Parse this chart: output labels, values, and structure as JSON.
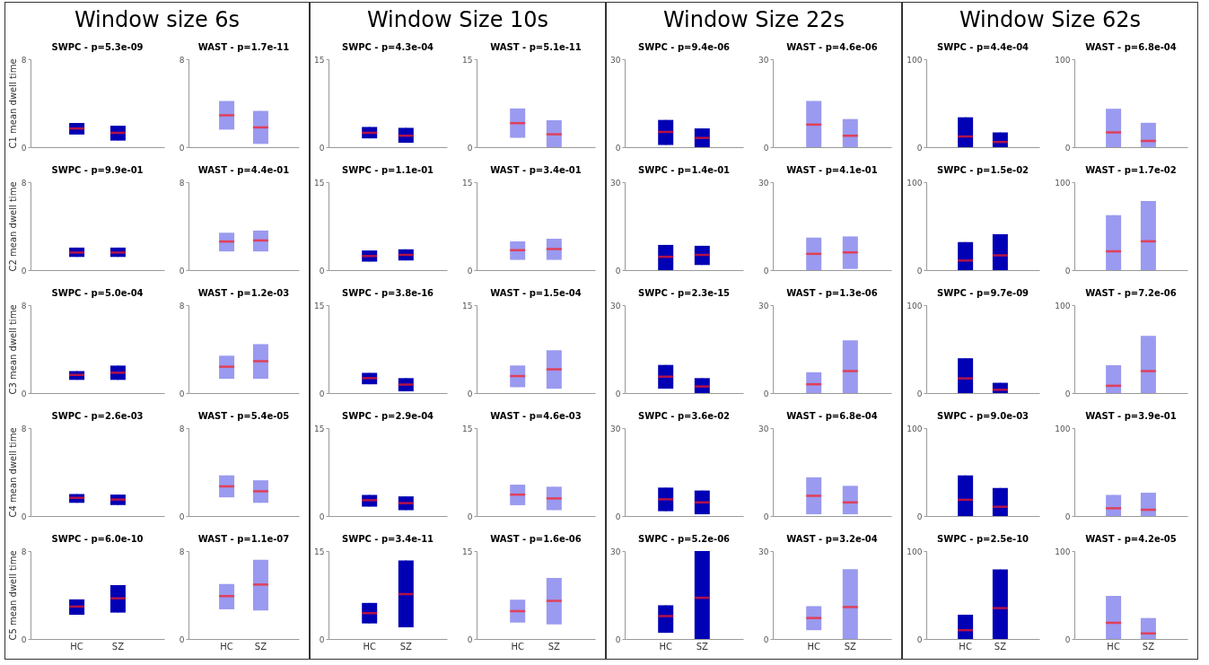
{
  "chart_data": [
    {
      "type": "box",
      "title": "SWPC - p=5.3e-09",
      "ylabel": "C1 mean dwell time",
      "annotations": [
        "Window size 6s"
      ],
      "categories": [
        null,
        null
      ],
      "ylim": [
        0,
        8
      ],
      "yticks": [
        0,
        8
      ],
      "series": [
        {
          "color": "#0000b4",
          "boxes": [
            {
              "low": 1.15,
              "q1": 1.15,
              "median": 1.7,
              "q3": 2.2,
              "high": 2.2
            },
            {
              "low": 0.6,
              "q1": 0.6,
              "median": 1.3,
              "q3": 1.95,
              "high": 1.95
            }
          ]
        }
      ]
    },
    {
      "type": "box",
      "title": "WAST - p=1.7e-11",
      "categories": [
        null,
        null
      ],
      "ylim": [
        0,
        8
      ],
      "yticks": [
        0,
        8
      ],
      "series": [
        {
          "color": "#9a9af0",
          "boxes": [
            {
              "low": 1.6,
              "q1": 1.6,
              "median": 2.9,
              "q3": 4.2,
              "high": 4.2
            },
            {
              "low": 0.3,
              "q1": 0.3,
              "median": 1.8,
              "q3": 3.3,
              "high": 3.3
            }
          ]
        }
      ]
    },
    {
      "type": "box",
      "title": "SWPC - p=4.3e-04",
      "annotations": [
        "Window Size 10s"
      ],
      "categories": [
        null,
        null
      ],
      "ylim": [
        0,
        15
      ],
      "yticks": [
        0,
        15
      ],
      "series": [
        {
          "color": "#0000b4",
          "boxes": [
            {
              "low": 1.5,
              "q1": 1.5,
              "median": 2.45,
              "q3": 3.45,
              "high": 3.45
            },
            {
              "low": 0.75,
              "q1": 0.75,
              "median": 1.95,
              "q3": 3.3,
              "high": 3.3
            }
          ]
        }
      ]
    },
    {
      "type": "box",
      "title": "WAST - p=5.1e-11",
      "categories": [
        null,
        null
      ],
      "ylim": [
        0,
        15
      ],
      "yticks": [
        0,
        15
      ],
      "series": [
        {
          "color": "#9a9af0",
          "boxes": [
            {
              "low": 1.6,
              "q1": 1.6,
              "median": 4.1,
              "q3": 6.6,
              "high": 6.6
            },
            {
              "low": 0,
              "q1": 0,
              "median": 2.2,
              "q3": 4.6,
              "high": 4.6
            }
          ]
        }
      ]
    },
    {
      "type": "box",
      "title": "SWPC - p=9.4e-06",
      "annotations": [
        "Window Size 22s"
      ],
      "categories": [
        null,
        null
      ],
      "ylim": [
        0,
        30
      ],
      "yticks": [
        0,
        30
      ],
      "series": [
        {
          "color": "#0000b4",
          "boxes": [
            {
              "low": 0.75,
              "q1": 0.75,
              "median": 5.2,
              "q3": 9.3,
              "high": 9.3
            },
            {
              "low": 0,
              "q1": 0,
              "median": 3.15,
              "q3": 6.4,
              "high": 6.4
            }
          ]
        }
      ]
    },
    {
      "type": "box",
      "title": "WAST - p=4.6e-06",
      "categories": [
        null,
        null
      ],
      "ylim": [
        0,
        30
      ],
      "yticks": [
        0,
        30
      ],
      "series": [
        {
          "color": "#9a9af0",
          "boxes": [
            {
              "low": 0,
              "q1": 0,
              "median": 7.7,
              "q3": 15.8,
              "high": 15.8
            },
            {
              "low": 0,
              "q1": 0,
              "median": 3.9,
              "q3": 9.6,
              "high": 9.6
            }
          ]
        }
      ]
    },
    {
      "type": "box",
      "title": "SWPC - p=4.4e-04",
      "annotations": [
        "Window Size 62s"
      ],
      "categories": [
        null,
        null
      ],
      "ylim": [
        0,
        100
      ],
      "yticks": [
        0,
        100
      ],
      "series": [
        {
          "color": "#0000b4",
          "boxes": [
            {
              "low": 0,
              "q1": 0,
              "median": 12.2,
              "q3": 34,
              "high": 34
            },
            {
              "low": 0,
              "q1": 0,
              "median": 5.9,
              "q3": 16.8,
              "high": 16.8
            }
          ]
        }
      ]
    },
    {
      "type": "box",
      "title": "WAST - p=6.8e-04",
      "categories": [
        null,
        null
      ],
      "ylim": [
        0,
        100
      ],
      "yticks": [
        0,
        100
      ],
      "series": [
        {
          "color": "#9a9af0",
          "boxes": [
            {
              "low": 0,
              "q1": 0,
              "median": 16.8,
              "q3": 43.7,
              "high": 43.7
            },
            {
              "low": 0,
              "q1": 0,
              "median": 7.1,
              "q3": 27.7,
              "high": 27.7
            }
          ]
        }
      ]
    },
    {
      "type": "box",
      "title": "SWPC - p=9.9e-01",
      "ylabel": "C2 mean dwell time",
      "categories": [
        null,
        null
      ],
      "ylim": [
        0,
        8
      ],
      "yticks": [
        0,
        8
      ],
      "series": [
        {
          "color": "#0000b4",
          "boxes": [
            {
              "low": 1.2,
              "q1": 1.2,
              "median": 1.6,
              "q3": 2.05,
              "high": 2.05
            },
            {
              "low": 1.2,
              "q1": 1.2,
              "median": 1.6,
              "q3": 2.05,
              "high": 2.05
            }
          ]
        }
      ]
    },
    {
      "type": "box",
      "title": "WAST - p=4.4e-01",
      "categories": [
        null,
        null
      ],
      "ylim": [
        0,
        8
      ],
      "yticks": [
        0,
        8
      ],
      "series": [
        {
          "color": "#9a9af0",
          "boxes": [
            {
              "low": 1.7,
              "q1": 1.7,
              "median": 2.6,
              "q3": 3.4,
              "high": 3.4
            },
            {
              "low": 1.7,
              "q1": 1.7,
              "median": 2.7,
              "q3": 3.6,
              "high": 3.6
            }
          ]
        }
      ]
    },
    {
      "type": "box",
      "title": "SWPC - p=1.1e-01",
      "categories": [
        null,
        null
      ],
      "ylim": [
        0,
        15
      ],
      "yticks": [
        0,
        15
      ],
      "series": [
        {
          "color": "#0000b4",
          "boxes": [
            {
              "low": 1.45,
              "q1": 1.45,
              "median": 2.4,
              "q3": 3.35,
              "high": 3.35
            },
            {
              "low": 1.65,
              "q1": 1.65,
              "median": 2.6,
              "q3": 3.55,
              "high": 3.55
            }
          ]
        }
      ]
    },
    {
      "type": "box",
      "title": "WAST - p=3.4e-01",
      "categories": [
        null,
        null
      ],
      "ylim": [
        0,
        15
      ],
      "yticks": [
        0,
        15
      ],
      "series": [
        {
          "color": "#9a9af0",
          "boxes": [
            {
              "low": 1.75,
              "q1": 1.75,
              "median": 3.4,
              "q3": 4.9,
              "high": 4.9
            },
            {
              "low": 1.75,
              "q1": 1.75,
              "median": 3.6,
              "q3": 5.35,
              "high": 5.35
            }
          ]
        }
      ]
    },
    {
      "type": "box",
      "title": "SWPC - p=1.4e-01",
      "categories": [
        null,
        null
      ],
      "ylim": [
        0,
        30
      ],
      "yticks": [
        0,
        30
      ],
      "series": [
        {
          "color": "#0000b4",
          "boxes": [
            {
              "low": 0,
              "q1": 0,
              "median": 4.55,
              "q3": 8.6,
              "high": 8.6
            },
            {
              "low": 1.75,
              "q1": 1.75,
              "median": 5.2,
              "q3": 8.3,
              "high": 8.3
            }
          ]
        }
      ]
    },
    {
      "type": "box",
      "title": "WAST - p=4.1e-01",
      "categories": [
        null,
        null
      ],
      "ylim": [
        0,
        30
      ],
      "yticks": [
        0,
        30
      ],
      "series": [
        {
          "color": "#9a9af0",
          "boxes": [
            {
              "low": 0,
              "q1": 0,
              "median": 5.55,
              "q3": 11.1,
              "high": 11.1
            },
            {
              "low": 0.4,
              "q1": 0.4,
              "median": 6.05,
              "q3": 11.5,
              "high": 11.5
            }
          ]
        }
      ]
    },
    {
      "type": "box",
      "title": "SWPC - p=1.5e-02",
      "categories": [
        null,
        null
      ],
      "ylim": [
        0,
        100
      ],
      "yticks": [
        0,
        100
      ],
      "series": [
        {
          "color": "#0000b4",
          "boxes": [
            {
              "low": 0,
              "q1": 0,
              "median": 10.9,
              "q3": 31.9,
              "high": 31.9
            },
            {
              "low": 0,
              "q1": 0,
              "median": 16.8,
              "q3": 40.8,
              "high": 40.8
            }
          ]
        }
      ]
    },
    {
      "type": "box",
      "title": "WAST - p=1.7e-02",
      "categories": [
        null,
        null
      ],
      "ylim": [
        0,
        100
      ],
      "yticks": [
        0,
        100
      ],
      "series": [
        {
          "color": "#9a9af0",
          "boxes": [
            {
              "low": 0,
              "q1": 0,
              "median": 21.4,
              "q3": 62.6,
              "high": 62.6
            },
            {
              "low": 0,
              "q1": 0,
              "median": 32.8,
              "q3": 78.6,
              "high": 78.6
            }
          ]
        }
      ]
    },
    {
      "type": "box",
      "title": "SWPC - p=5.0e-04",
      "ylabel": "C3 mean dwell time",
      "categories": [
        null,
        null
      ],
      "ylim": [
        0,
        8
      ],
      "yticks": [
        0,
        8
      ],
      "series": [
        {
          "color": "#0000b4",
          "boxes": [
            {
              "low": 1.2,
              "q1": 1.2,
              "median": 1.65,
              "q3": 2.0,
              "high": 2.0
            },
            {
              "low": 1.2,
              "q1": 1.2,
              "median": 1.85,
              "q3": 2.5,
              "high": 2.5
            }
          ]
        }
      ]
    },
    {
      "type": "box",
      "title": "WAST - p=1.2e-03",
      "categories": [
        null,
        null
      ],
      "ylim": [
        0,
        8
      ],
      "yticks": [
        0,
        8
      ],
      "series": [
        {
          "color": "#9a9af0",
          "boxes": [
            {
              "low": 1.3,
              "q1": 1.3,
              "median": 2.4,
              "q3": 3.4,
              "high": 3.4
            },
            {
              "low": 1.3,
              "q1": 1.3,
              "median": 2.9,
              "q3": 4.45,
              "high": 4.45
            }
          ]
        }
      ]
    },
    {
      "type": "box",
      "title": "SWPC - p=3.8e-16",
      "categories": [
        null,
        null
      ],
      "ylim": [
        0,
        15
      ],
      "yticks": [
        0,
        15
      ],
      "series": [
        {
          "color": "#0000b4",
          "boxes": [
            {
              "low": 1.5,
              "q1": 1.5,
              "median": 2.55,
              "q3": 3.45,
              "high": 3.45
            },
            {
              "low": 0.3,
              "q1": 0.3,
              "median": 1.45,
              "q3": 2.55,
              "high": 2.55
            }
          ]
        }
      ]
    },
    {
      "type": "box",
      "title": "WAST - p=1.5e-04",
      "categories": [
        null,
        null
      ],
      "ylim": [
        0,
        15
      ],
      "yticks": [
        0,
        15
      ],
      "series": [
        {
          "color": "#9a9af0",
          "boxes": [
            {
              "low": 1.0,
              "q1": 1.0,
              "median": 2.9,
              "q3": 4.7,
              "high": 4.7
            },
            {
              "low": 0.75,
              "q1": 0.75,
              "median": 4.05,
              "q3": 7.3,
              "high": 7.3
            }
          ]
        }
      ]
    },
    {
      "type": "box",
      "title": "SWPC - p=2.3e-15",
      "categories": [
        null,
        null
      ],
      "ylim": [
        0,
        30
      ],
      "yticks": [
        0,
        30
      ],
      "series": [
        {
          "color": "#0000b4",
          "boxes": [
            {
              "low": 1.5,
              "q1": 1.5,
              "median": 5.6,
              "q3": 9.6,
              "high": 9.6
            },
            {
              "low": 0,
              "q1": 0,
              "median": 2.25,
              "q3": 5.1,
              "high": 5.1
            }
          ]
        }
      ]
    },
    {
      "type": "box",
      "title": "WAST - p=1.3e-06",
      "categories": [
        null,
        null
      ],
      "ylim": [
        0,
        30
      ],
      "yticks": [
        0,
        30
      ],
      "series": [
        {
          "color": "#9a9af0",
          "boxes": [
            {
              "low": 0,
              "q1": 0,
              "median": 3.0,
              "q3": 7.1,
              "high": 7.1
            },
            {
              "low": 0,
              "q1": 0,
              "median": 7.5,
              "q3": 18.0,
              "high": 18.0
            }
          ]
        }
      ]
    },
    {
      "type": "box",
      "title": "SWPC - p=9.7e-09",
      "categories": [
        null,
        null
      ],
      "ylim": [
        0,
        100
      ],
      "yticks": [
        0,
        100
      ],
      "series": [
        {
          "color": "#0000b4",
          "boxes": [
            {
              "low": 0,
              "q1": 0,
              "median": 16.7,
              "q3": 39.6,
              "high": 39.6
            },
            {
              "low": 0,
              "q1": 0,
              "median": 3.75,
              "q3": 11.7,
              "high": 11.7
            }
          ]
        }
      ]
    },
    {
      "type": "box",
      "title": "WAST - p=7.2e-06",
      "categories": [
        null,
        null
      ],
      "ylim": [
        0,
        100
      ],
      "yticks": [
        0,
        100
      ],
      "series": [
        {
          "color": "#9a9af0",
          "boxes": [
            {
              "low": 0,
              "q1": 0,
              "median": 8.3,
              "q3": 31.7,
              "high": 31.7
            },
            {
              "low": 0,
              "q1": 0,
              "median": 25,
              "q3": 65,
              "high": 65
            }
          ]
        }
      ]
    },
    {
      "type": "box",
      "title": "SWPC - p=2.6e-03",
      "ylabel": "C4 mean dwell time",
      "categories": [
        null,
        null
      ],
      "ylim": [
        0,
        8
      ],
      "yticks": [
        0,
        8
      ],
      "series": [
        {
          "color": "#0000b4",
          "boxes": [
            {
              "low": 1.2,
              "q1": 1.2,
              "median": 1.65,
              "q3": 2.0,
              "high": 2.0
            },
            {
              "low": 1.0,
              "q1": 1.0,
              "median": 1.5,
              "q3": 1.95,
              "high": 1.95
            }
          ]
        }
      ]
    },
    {
      "type": "box",
      "title": "WAST - p=5.4e-05",
      "categories": [
        null,
        null
      ],
      "ylim": [
        0,
        8
      ],
      "yticks": [
        0,
        8
      ],
      "series": [
        {
          "color": "#9a9af0",
          "boxes": [
            {
              "low": 1.7,
              "q1": 1.7,
              "median": 2.7,
              "q3": 3.7,
              "high": 3.7
            },
            {
              "low": 1.2,
              "q1": 1.2,
              "median": 2.25,
              "q3": 3.25,
              "high": 3.25
            }
          ]
        }
      ]
    },
    {
      "type": "box",
      "title": "SWPC - p=2.9e-04",
      "categories": [
        null,
        null
      ],
      "ylim": [
        0,
        15
      ],
      "yticks": [
        0,
        15
      ],
      "series": [
        {
          "color": "#0000b4",
          "boxes": [
            {
              "low": 1.6,
              "q1": 1.6,
              "median": 2.7,
              "q3": 3.6,
              "high": 3.6
            },
            {
              "low": 1.0,
              "q1": 1.0,
              "median": 2.2,
              "q3": 3.35,
              "high": 3.35
            }
          ]
        }
      ]
    },
    {
      "type": "box",
      "title": "WAST - p=4.6e-03",
      "categories": [
        null,
        null
      ],
      "ylim": [
        0,
        15
      ],
      "yticks": [
        0,
        15
      ],
      "series": [
        {
          "color": "#9a9af0",
          "boxes": [
            {
              "low": 1.85,
              "q1": 1.85,
              "median": 3.65,
              "q3": 5.35,
              "high": 5.35
            },
            {
              "low": 1.0,
              "q1": 1.0,
              "median": 3.0,
              "q3": 5.0,
              "high": 5.0
            }
          ]
        }
      ]
    },
    {
      "type": "box",
      "title": "SWPC - p=3.6e-02",
      "categories": [
        null,
        null
      ],
      "ylim": [
        0,
        30
      ],
      "yticks": [
        0,
        30
      ],
      "series": [
        {
          "color": "#0000b4",
          "boxes": [
            {
              "low": 1.65,
              "q1": 1.65,
              "median": 5.7,
              "q3": 9.7,
              "high": 9.7
            },
            {
              "low": 0.6,
              "q1": 0.6,
              "median": 4.65,
              "q3": 8.7,
              "high": 8.7
            }
          ]
        }
      ]
    },
    {
      "type": "box",
      "title": "WAST - p=6.8e-04",
      "categories": [
        null,
        null
      ],
      "ylim": [
        0,
        30
      ],
      "yticks": [
        0,
        30
      ],
      "series": [
        {
          "color": "#9a9af0",
          "boxes": [
            {
              "low": 0.6,
              "q1": 0.6,
              "median": 6.9,
              "q3": 13.2,
              "high": 13.2
            },
            {
              "low": 0.6,
              "q1": 0.6,
              "median": 4.65,
              "q3": 10.3,
              "high": 10.3
            }
          ]
        }
      ]
    },
    {
      "type": "box",
      "title": "SWPC - p=9.0e-03",
      "categories": [
        null,
        null
      ],
      "ylim": [
        0,
        100
      ],
      "yticks": [
        0,
        100
      ],
      "series": [
        {
          "color": "#0000b4",
          "boxes": [
            {
              "low": 0,
              "q1": 0,
              "median": 18.5,
              "q3": 46.2,
              "high": 46.2
            },
            {
              "low": 0,
              "q1": 0,
              "median": 10.5,
              "q3": 31.9,
              "high": 31.9
            }
          ]
        }
      ]
    },
    {
      "type": "box",
      "title": "WAST - p=3.9e-01",
      "categories": [
        null,
        null
      ],
      "ylim": [
        0,
        100
      ],
      "yticks": [
        0,
        100
      ],
      "series": [
        {
          "color": "#9a9af0",
          "boxes": [
            {
              "low": 0,
              "q1": 0,
              "median": 8.8,
              "q3": 24,
              "high": 24
            },
            {
              "low": 0,
              "q1": 0,
              "median": 7.1,
              "q3": 26.5,
              "high": 26.5
            }
          ]
        }
      ]
    },
    {
      "type": "box",
      "title": "SWPC - p=6.0e-10",
      "ylabel": "C5 mean dwell time",
      "categories": [
        "HC",
        "SZ"
      ],
      "ylim": [
        0,
        8
      ],
      "yticks": [
        0,
        8
      ],
      "series": [
        {
          "color": "#0000b4",
          "boxes": [
            {
              "low": 2.2,
              "q1": 2.2,
              "median": 2.95,
              "q3": 3.6,
              "high": 3.6
            },
            {
              "low": 2.4,
              "q1": 2.4,
              "median": 3.7,
              "q3": 4.9,
              "high": 4.9
            }
          ]
        }
      ]
    },
    {
      "type": "box",
      "title": "WAST - p=1.1e-07",
      "categories": [
        "HC",
        "SZ"
      ],
      "ylim": [
        0,
        8
      ],
      "yticks": [
        0,
        8
      ],
      "series": [
        {
          "color": "#9a9af0",
          "boxes": [
            {
              "low": 2.7,
              "q1": 2.7,
              "median": 3.9,
              "q3": 5.0,
              "high": 5.0
            },
            {
              "low": 2.6,
              "q1": 2.6,
              "median": 4.95,
              "q3": 7.2,
              "high": 7.2
            }
          ]
        }
      ]
    },
    {
      "type": "box",
      "title": "SWPC - p=3.4e-11",
      "categories": [
        "HC",
        "SZ"
      ],
      "ylim": [
        0,
        15
      ],
      "yticks": [
        0,
        15
      ],
      "series": [
        {
          "color": "#0000b4",
          "boxes": [
            {
              "low": 2.65,
              "q1": 2.65,
              "median": 4.4,
              "q3": 6.15,
              "high": 6.15
            },
            {
              "low": 2.0,
              "q1": 2.0,
              "median": 7.65,
              "q3": 13.4,
              "high": 13.4
            }
          ]
        }
      ]
    },
    {
      "type": "box",
      "title": "WAST - p=1.6e-06",
      "categories": [
        "HC",
        "SZ"
      ],
      "ylim": [
        0,
        15
      ],
      "yticks": [
        0,
        15
      ],
      "series": [
        {
          "color": "#9a9af0",
          "boxes": [
            {
              "low": 2.8,
              "q1": 2.8,
              "median": 4.75,
              "q3": 6.7,
              "high": 6.7
            },
            {
              "low": 2.5,
              "q1": 2.5,
              "median": 6.5,
              "q3": 10.4,
              "high": 10.4
            }
          ]
        }
      ]
    },
    {
      "type": "box",
      "title": "SWPC - p=5.2e-06",
      "categories": [
        "HC",
        "SZ"
      ],
      "ylim": [
        0,
        30
      ],
      "yticks": [
        0,
        30
      ],
      "series": [
        {
          "color": "#0000b4",
          "boxes": [
            {
              "low": 2.1,
              "q1": 2.1,
              "median": 7.8,
              "q3": 11.5,
              "high": 11.5
            },
            {
              "low": 0,
              "q1": 0,
              "median": 14.05,
              "q3": 30,
              "high": 30
            }
          ]
        }
      ]
    },
    {
      "type": "box",
      "title": "WAST - p=3.2e-04",
      "categories": [
        "HC",
        "SZ"
      ],
      "ylim": [
        0,
        30
      ],
      "yticks": [
        0,
        30
      ],
      "series": [
        {
          "color": "#9a9af0",
          "boxes": [
            {
              "low": 3.0,
              "q1": 3.0,
              "median": 7.15,
              "q3": 11.2,
              "high": 11.2
            },
            {
              "low": 0,
              "q1": 0,
              "median": 10.9,
              "q3": 23.8,
              "high": 23.8
            }
          ]
        }
      ]
    },
    {
      "type": "box",
      "title": "SWPC - p=2.5e-10",
      "categories": [
        "HC",
        "SZ"
      ],
      "ylim": [
        0,
        100
      ],
      "yticks": [
        0,
        100
      ],
      "series": [
        {
          "color": "#0000b4",
          "boxes": [
            {
              "low": 0,
              "q1": 0,
              "median": 10,
              "q3": 27.6,
              "high": 27.6
            },
            {
              "low": 0,
              "q1": 0,
              "median": 35.1,
              "q3": 79,
              "high": 79
            }
          ]
        }
      ]
    },
    {
      "type": "box",
      "title": "WAST - p=4.2e-05",
      "categories": [
        "HC",
        "SZ"
      ],
      "ylim": [
        0,
        100
      ],
      "yticks": [
        0,
        100
      ],
      "series": [
        {
          "color": "#9a9af0",
          "boxes": [
            {
              "low": 0,
              "q1": 0,
              "median": 18.4,
              "q3": 49,
              "high": 49
            },
            {
              "low": 0,
              "q1": 0,
              "median": 6.3,
              "q3": 23.8,
              "high": 23.8
            }
          ]
        }
      ]
    }
  ]
}
